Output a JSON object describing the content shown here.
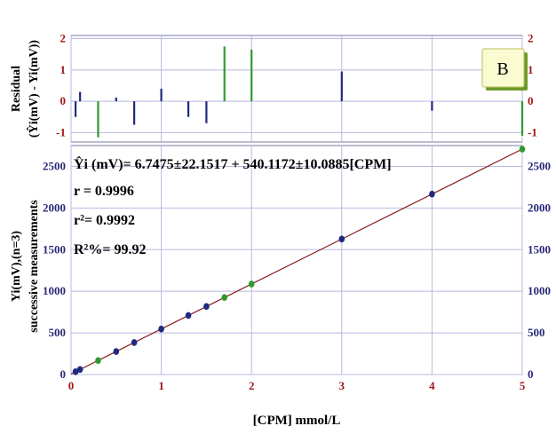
{
  "chart_data": [
    {
      "type": "bar",
      "panel": "residuals",
      "panel_label": "B",
      "ylabel_line1": "Residual",
      "ylabel_line2": "(Ŷi(mV) - Yi(mV))",
      "xlim": [
        0,
        5
      ],
      "ylim": [
        -1.3,
        2.1
      ],
      "yticks": [
        -1,
        0,
        1,
        2
      ],
      "yticks_labels": [
        "-1",
        "0",
        "1",
        "2"
      ],
      "grid": true,
      "x": [
        0.05,
        0.1,
        0.3,
        0.5,
        0.7,
        1.0,
        1.3,
        1.5,
        1.7,
        2.0,
        3.0,
        4.0,
        5.0
      ],
      "values": [
        -0.5,
        0.3,
        -1.15,
        0.12,
        -0.75,
        0.4,
        -0.5,
        -0.7,
        1.75,
        1.65,
        0.95,
        -0.3,
        -1.1
      ],
      "colors": [
        "#1f2a80",
        "#1f2a80",
        "#2e9a2e",
        "#1f2a80",
        "#1f2a80",
        "#1f2a80",
        "#1f2a80",
        "#1f2a80",
        "#2e9a2e",
        "#2e9a2e",
        "#1f2a80",
        "#1f2a80",
        "#2e9a2e"
      ]
    },
    {
      "type": "scatter",
      "panel": "calibration",
      "xlabel": "[CPM] mmol/L",
      "ylabel_line1": "Yi(mV),(n=3)",
      "ylabel_line2": "successive measurements",
      "xlim": [
        0,
        5
      ],
      "ylim": [
        0,
        2750
      ],
      "xticks": [
        0,
        1,
        2,
        3,
        4,
        5
      ],
      "xticks_labels": [
        "0",
        "1",
        "2",
        "3",
        "4",
        "5"
      ],
      "yticks": [
        0,
        500,
        1000,
        1500,
        2000,
        2500
      ],
      "yticks_labels": [
        "0",
        "500",
        "1000",
        "1500",
        "2000",
        "2500"
      ],
      "grid": true,
      "series": [
        {
          "x": [
            0.05,
            0.1,
            0.3,
            0.5,
            0.7,
            1.0,
            1.3,
            1.5,
            1.7,
            2.0,
            3.0,
            4.0,
            5.0
          ],
          "y": [
            33.8,
            60.8,
            168.8,
            276.8,
            384.8,
            546.9,
            709.0,
            817.0,
            925.0,
            1087.0,
            1627.1,
            2167.2,
            2707.3
          ],
          "colors": [
            "#1f2a80",
            "#1f2a80",
            "#2e9a2e",
            "#1f2a80",
            "#1f2a80",
            "#1f2a80",
            "#1f2a80",
            "#1f2a80",
            "#2e9a2e",
            "#2e9a2e",
            "#1f2a80",
            "#1f2a80",
            "#2e9a2e"
          ]
        }
      ],
      "fit": {
        "intercept": 6.7475,
        "slope": 540.1172,
        "line_color": "#8b1a1a",
        "equation": "Ŷi (mV)= 6.7475±22.1517 + 540.1172±10.0885[CPM]",
        "r_text": "r = 0.9996",
        "r2_text": "r²= 0.9992",
        "R2pct_text": "R²%= 99.92"
      }
    }
  ]
}
